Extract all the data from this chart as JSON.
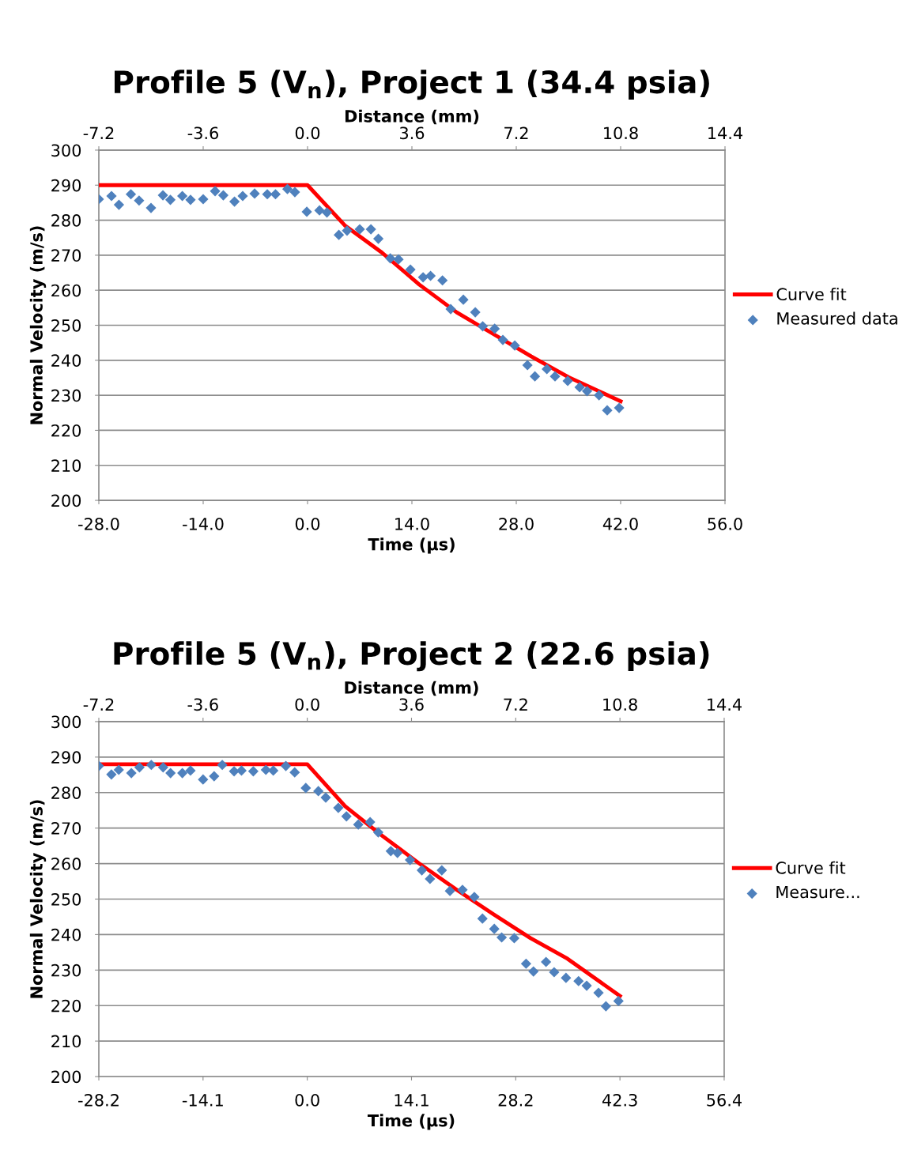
{
  "chart_data": [
    {
      "type": "scatter",
      "title": "Profile 5 (V$_{n}$), Project 1 (34.4 psia)",
      "xlabel": "Time (µs)",
      "ylabel": "Normal Velocity (m/s)",
      "x2label": "Distance (mm)",
      "xlim": [
        -28,
        56
      ],
      "xticks": [
        {
          "value": -28,
          "label": "-28.0"
        },
        {
          "value": -14,
          "label": "-14.0"
        },
        {
          "value": 0,
          "label": "0.0"
        },
        {
          "value": 14,
          "label": "14.0"
        },
        {
          "value": 28,
          "label": "28.0"
        },
        {
          "value": 42,
          "label": "42.0"
        },
        {
          "value": 56,
          "label": "56.0"
        }
      ],
      "x2lim": [
        -7.2,
        14.4
      ],
      "x2ticks": [
        -7.2,
        -3.6,
        {
          "value": 0,
          "label": "0.0"
        },
        3.6,
        7.2,
        10.8,
        14.4
      ],
      "ylim": [
        200,
        300
      ],
      "yticks": [
        200,
        210,
        220,
        230,
        240,
        250,
        260,
        270,
        280,
        290,
        300
      ],
      "grid": "y",
      "legend": "right",
      "series": [
        {
          "name": "Curve fit",
          "type": "line",
          "color": "#ff0000",
          "marker": "none",
          "x": [
            -28,
            0,
            5,
            10,
            15,
            20,
            25,
            30,
            35,
            42
          ],
          "values": [
            290,
            290,
            278.5,
            270.7,
            261.6,
            253.7,
            247.4,
            241.1,
            235.2,
            228.3
          ]
        },
        {
          "name": "Measured data",
          "color": "#4f81bd",
          "marker": "diamond",
          "x": [
            -28,
            -26.3,
            -25.3,
            -23.7,
            -22.6,
            -21.0,
            -19.4,
            -18.4,
            -16.8,
            -15.7,
            -14.0,
            -12.4,
            -11.3,
            -9.8,
            -8.7,
            -7.1,
            -5.4,
            -4.3,
            -2.7,
            -1.7,
            -0.1,
            1.6,
            2.6,
            4.2,
            5.3,
            7.0,
            8.5,
            9.5,
            11.1,
            12.2,
            13.8,
            15.5,
            16.5,
            18.1,
            19.2,
            20.9,
            22.5,
            23.5,
            25.1,
            26.2,
            27.8,
            29.5,
            30.5,
            32.1,
            33.2,
            34.9,
            36.5,
            37.5,
            39.1,
            40.2,
            41.8
          ],
          "values": [
            286.0,
            286.9,
            284.4,
            287.4,
            285.6,
            283.5,
            287.1,
            285.8,
            286.9,
            285.8,
            286.0,
            288.3,
            287.1,
            285.3,
            286.9,
            287.6,
            287.4,
            287.4,
            288.9,
            288.0,
            282.4,
            282.8,
            282.2,
            275.8,
            277.0,
            277.4,
            277.4,
            274.7,
            269.1,
            268.8,
            265.9,
            263.7,
            264.1,
            262.8,
            254.6,
            257.3,
            253.7,
            249.7,
            249.0,
            245.8,
            244.2,
            238.6,
            235.4,
            237.5,
            235.4,
            234.1,
            232.3,
            231.2,
            230.0,
            225.7,
            226.4
          ]
        }
      ]
    },
    {
      "type": "scatter",
      "title": "Profile 5 (V$_{n}$), Project 2 (22.6 psia)",
      "xlabel": "Time (µs)",
      "ylabel": "Normal Velocity (m/s)",
      "x2label": "Distance (mm)",
      "xlim": [
        -28.2,
        56.4
      ],
      "xticks": [
        -28.2,
        -14.1,
        {
          "value": 0,
          "label": "0.0"
        },
        14.1,
        28.2,
        42.3,
        56.4
      ],
      "x2lim": [
        -7.2,
        14.4
      ],
      "x2ticks": [
        -7.2,
        -3.6,
        {
          "value": 0,
          "label": "0.0"
        },
        3.6,
        7.2,
        10.8,
        14.4
      ],
      "ylim": [
        200,
        300
      ],
      "yticks": [
        200,
        210,
        220,
        230,
        240,
        250,
        260,
        270,
        280,
        290,
        300
      ],
      "grid": "y",
      "legend": "right",
      "series": [
        {
          "name": "Curve fit",
          "type": "line",
          "color": "#ff0000",
          "marker": "none",
          "x": [
            -28.2,
            0,
            5.1,
            10.1,
            15.1,
            20.1,
            25.2,
            30.2,
            35.2,
            42.3
          ],
          "values": [
            288,
            288,
            276.2,
            267.9,
            260.1,
            252.8,
            245.7,
            239.0,
            233.2,
            222.7
          ]
        },
        {
          "name": "Measure...",
          "color": "#4f81bd",
          "marker": "diamond",
          "x": [
            -28.2,
            -26.5,
            -25.5,
            -23.8,
            -22.7,
            -21.1,
            -19.5,
            -18.5,
            -16.9,
            -15.8,
            -14.1,
            -12.6,
            -11.5,
            -9.9,
            -8.9,
            -7.3,
            -5.6,
            -4.6,
            -2.9,
            -1.7,
            -0.2,
            1.5,
            2.5,
            4.2,
            5.3,
            6.9,
            8.5,
            9.6,
            11.3,
            12.2,
            13.9,
            15.5,
            16.6,
            18.2,
            19.3,
            21.0,
            22.6,
            23.7,
            25.3,
            26.3,
            28.0,
            29.6,
            30.6,
            32.3,
            33.4,
            35.0,
            36.7,
            37.8,
            39.4,
            40.4,
            42.1
          ],
          "values": [
            287.5,
            285.1,
            286.4,
            285.5,
            287.1,
            287.8,
            287.1,
            285.5,
            285.5,
            286.2,
            283.7,
            284.6,
            287.8,
            286.0,
            286.2,
            286.0,
            286.4,
            286.2,
            287.5,
            285.7,
            281.3,
            280.4,
            278.6,
            275.7,
            273.3,
            271.0,
            271.7,
            268.8,
            263.5,
            263.0,
            261.0,
            258.1,
            255.7,
            258.1,
            252.3,
            252.6,
            250.6,
            244.5,
            241.6,
            239.2,
            239.0,
            231.8,
            229.6,
            232.3,
            229.4,
            227.8,
            226.9,
            225.6,
            223.6,
            219.8,
            221.3
          ]
        }
      ]
    }
  ]
}
